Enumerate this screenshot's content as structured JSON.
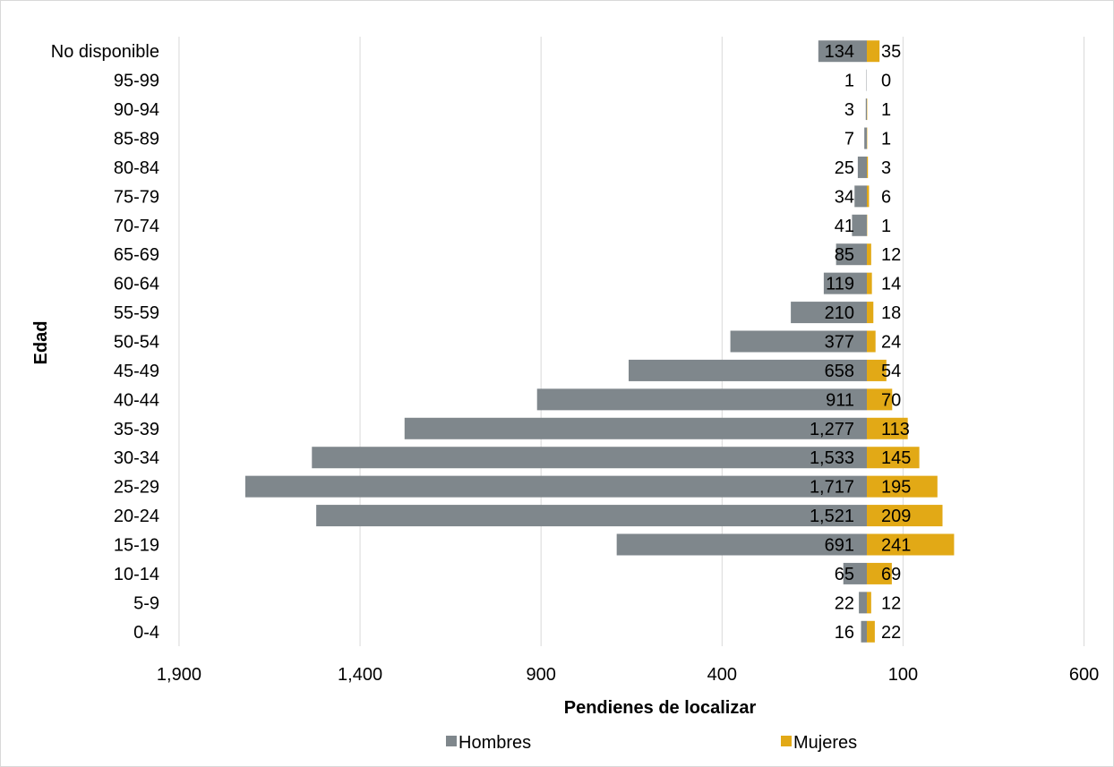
{
  "chart_data": {
    "type": "bar",
    "orientation": "horizontal",
    "title": "",
    "xlabel": "Pendienes de localizar",
    "ylabel": "Edad",
    "categories": [
      "0-4",
      "5-9",
      "10-14",
      "15-19",
      "20-24",
      "25-29",
      "30-34",
      "35-39",
      "40-44",
      "45-49",
      "50-54",
      "55-59",
      "60-64",
      "65-69",
      "70-74",
      "75-79",
      "80-84",
      "85-89",
      "90-94",
      "95-99",
      "No disponible"
    ],
    "xlim": [
      -1900,
      600
    ],
    "x_tick_labels": [
      "1,900",
      "1,400",
      "900",
      "400",
      "100",
      "600"
    ],
    "grid": true,
    "legend_position": "bottom",
    "series": [
      {
        "name": "Hombres",
        "color": "#7f878c",
        "values": [
          16,
          22,
          65,
          691,
          1521,
          1717,
          1533,
          1277,
          911,
          658,
          377,
          210,
          119,
          85,
          41,
          34,
          25,
          7,
          3,
          1,
          134
        ],
        "value_labels": [
          "16",
          "22",
          "65",
          "691",
          "1,521",
          "1,717",
          "1,533",
          "1,277",
          "911",
          "658",
          "377",
          "210",
          "119",
          "85",
          "41",
          "34",
          "25",
          "7",
          "3",
          "1",
          "134"
        ]
      },
      {
        "name": "Mujeres",
        "color": "#e2a916",
        "values": [
          22,
          12,
          69,
          241,
          209,
          195,
          145,
          113,
          70,
          54,
          24,
          18,
          14,
          12,
          1,
          6,
          3,
          1,
          1,
          0,
          35
        ],
        "value_labels": [
          "22",
          "12",
          "69",
          "241",
          "209",
          "195",
          "145",
          "113",
          "70",
          "54",
          "24",
          "18",
          "14",
          "12",
          "1",
          "6",
          "3",
          "1",
          "1",
          "0",
          "35"
        ]
      }
    ]
  }
}
